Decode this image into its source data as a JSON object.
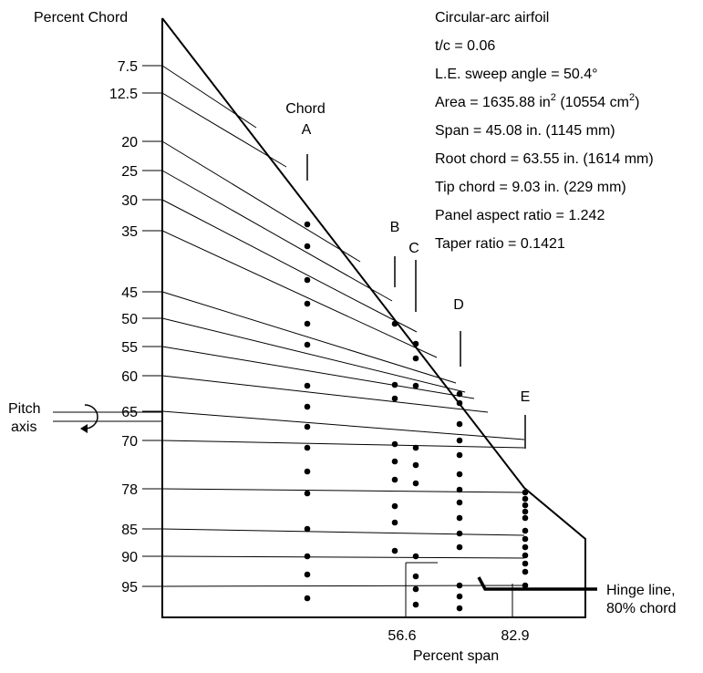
{
  "title": "Percent Chord",
  "x_axis": {
    "label": "Percent span",
    "ticks": [
      "56.6",
      "82.9"
    ]
  },
  "y_axis_ticks": [
    "7.5",
    "12.5",
    "20",
    "25",
    "30",
    "35",
    "45",
    "50",
    "55",
    "60",
    "65",
    "70",
    "78",
    "85",
    "90",
    "95"
  ],
  "pitch_axis_label": [
    "Pitch",
    "axis"
  ],
  "chord_labels": [
    "Chord",
    "A",
    "B",
    "C",
    "D",
    "E"
  ],
  "hinge_line_label": [
    "Hinge line,",
    "80% chord"
  ],
  "specs": {
    "line1": "Circular-arc airfoil",
    "line2": "t/c = 0.06",
    "line3": "L.E. sweep angle = 50.4°",
    "area_a": "Area = 1635.88 in",
    "area_b": "2",
    "area_c": " (10554 cm",
    "area_d": "2",
    "area_e": ")",
    "line5": "Span = 45.08 in. (1145 mm)",
    "line6": "Root chord = 63.55 in. (1614 mm)",
    "line7": "Tip chord = 9.03 in. (229 mm)",
    "line8": "Panel aspect ratio = 1.242",
    "line9": "Taper ratio = 0.1421"
  }
}
